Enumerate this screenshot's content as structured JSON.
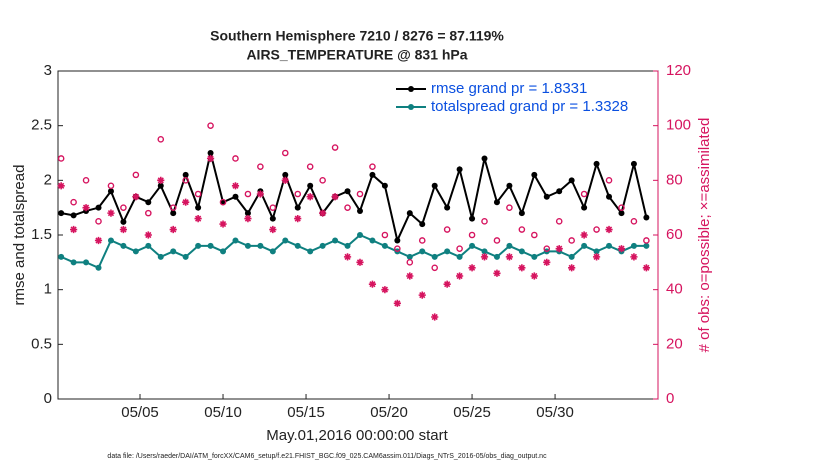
{
  "chart_data": {
    "type": "line",
    "title": "Southern Hemisphere 7210 / 8276 = 87.119%",
    "subtitle": "AIRS_TEMPERATURE @ 831 hPa",
    "xlabel": "May.01,2016 00:00:00 start",
    "ylabel": "rmse and totalspread",
    "y2label": "# of obs: o=possible; ×=assimilated",
    "footnote": "data file: /Users/raeder/DAI/ATM_forcXX/CAM6_setup/f.e21.FHIST_BGC.f09_025.CAM6assim.011/Diags_NTrS_2016-05/obs_diag_output.nc",
    "xlim": [
      0.06,
      36.2
    ],
    "xticks": [
      {
        "value": 5,
        "label": "05/05"
      },
      {
        "value": 10,
        "label": "05/10"
      },
      {
        "value": 15,
        "label": "05/15"
      },
      {
        "value": 20,
        "label": "05/20"
      },
      {
        "value": 25,
        "label": "05/25"
      },
      {
        "value": 30,
        "label": "05/30"
      }
    ],
    "ylim": [
      0,
      3
    ],
    "yticks": [
      0,
      0.5,
      1,
      1.5,
      2,
      2.5,
      3
    ],
    "y2lim": [
      0,
      120
    ],
    "y2ticks": [
      0,
      20,
      40,
      60,
      80,
      100,
      120
    ],
    "y2color": "#d6145f",
    "legend": "upper right",
    "legend_text_color": "#0a4fe0",
    "x": [
      0.25,
      1.0,
      1.75,
      2.5,
      3.25,
      4.0,
      4.75,
      5.5,
      6.25,
      7.0,
      7.75,
      8.5,
      9.25,
      10.0,
      10.75,
      11.5,
      12.25,
      13.0,
      13.75,
      14.5,
      15.25,
      16.0,
      16.75,
      17.5,
      18.25,
      19.0,
      19.75,
      20.5,
      21.25,
      22.0,
      22.75,
      23.5,
      24.25,
      25.0,
      25.75,
      26.5,
      27.25,
      28.0,
      28.75,
      29.5,
      30.25,
      31.0,
      31.75,
      32.5,
      33.25,
      34.0,
      34.75,
      35.5
    ],
    "series": [
      {
        "name": "rmse grand pr = 1.8331",
        "color": "#000000",
        "marker": "dot",
        "values": [
          1.7,
          1.68,
          1.72,
          1.75,
          1.9,
          1.62,
          1.85,
          1.8,
          1.95,
          1.7,
          2.05,
          1.75,
          2.25,
          1.8,
          1.85,
          1.7,
          1.9,
          1.65,
          2.05,
          1.75,
          1.95,
          1.7,
          1.85,
          1.9,
          1.72,
          2.05,
          1.95,
          1.45,
          1.7,
          1.6,
          1.95,
          1.75,
          2.1,
          1.65,
          2.2,
          1.8,
          1.95,
          1.7,
          2.05,
          1.85,
          1.9,
          2.0,
          1.75,
          2.15,
          1.85,
          1.7,
          2.15,
          1.66
        ]
      },
      {
        "name": "totalspread grand pr = 1.3328",
        "color": "#0f8080",
        "marker": "dot",
        "values": [
          1.3,
          1.25,
          1.25,
          1.2,
          1.45,
          1.4,
          1.35,
          1.4,
          1.3,
          1.35,
          1.3,
          1.4,
          1.4,
          1.35,
          1.45,
          1.4,
          1.4,
          1.35,
          1.45,
          1.4,
          1.35,
          1.4,
          1.45,
          1.4,
          1.5,
          1.45,
          1.4,
          1.35,
          1.3,
          1.35,
          1.3,
          1.35,
          1.3,
          1.4,
          1.35,
          1.3,
          1.4,
          1.35,
          1.3,
          1.35,
          1.35,
          1.3,
          1.4,
          1.35,
          1.4,
          1.35,
          1.4,
          1.4
        ]
      },
      {
        "color": "#d6145f",
        "marker": "circle",
        "axis": "y2",
        "values": [
          88,
          72,
          80,
          65,
          78,
          70,
          82,
          68,
          95,
          70,
          80,
          75,
          100,
          72,
          88,
          75,
          85,
          70,
          90,
          75,
          85,
          80,
          92,
          70,
          75,
          85,
          60,
          55,
          50,
          58,
          48,
          62,
          55,
          60,
          65,
          58,
          70,
          62,
          60,
          55,
          65,
          58,
          75,
          62,
          80,
          70,
          65,
          58
        ]
      },
      {
        "color": "#d6145f",
        "marker": "asterisk",
        "axis": "y2",
        "values": [
          78,
          62,
          70,
          58,
          68,
          62,
          74,
          60,
          80,
          62,
          72,
          66,
          88,
          64,
          78,
          66,
          75,
          62,
          80,
          66,
          74,
          68,
          74,
          52,
          50,
          42,
          40,
          35,
          45,
          38,
          30,
          42,
          45,
          48,
          52,
          46,
          52,
          48,
          45,
          50,
          55,
          48,
          60,
          52,
          62,
          55,
          52,
          48
        ]
      }
    ]
  }
}
